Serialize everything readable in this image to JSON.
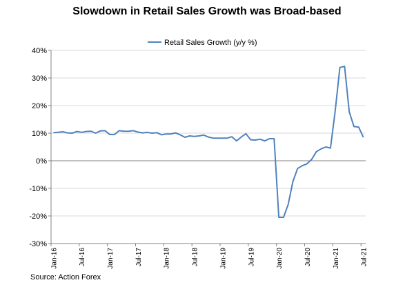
{
  "chart_data": {
    "type": "line",
    "title": "Slowdown in Retail Sales Growth was Broad-based",
    "xlabel": "",
    "ylabel": "",
    "ylim": [
      -30,
      40
    ],
    "yticks": [
      "40%",
      "30%",
      "20%",
      "10%",
      "0%",
      "-10%",
      "-20%",
      "-30%"
    ],
    "ytick_values": [
      40,
      30,
      20,
      10,
      0,
      -10,
      -20,
      -30
    ],
    "xtick_labels": [
      "Jan-16",
      "Jul-16",
      "Jan-17",
      "Jul-17",
      "Jan-18",
      "Jul-18",
      "Jan-19",
      "Jul-19",
      "Jan-20",
      "Jul-20",
      "Jan-21",
      "Jul-21"
    ],
    "x_start": "Jan-16",
    "grid": true,
    "legend_position": "top",
    "color": "#4f81bd",
    "series": [
      {
        "name": "Retail Sales Growth (y/y %)",
        "values": [
          10.2,
          10.3,
          10.5,
          10.1,
          10.0,
          10.6,
          10.3,
          10.6,
          10.7,
          10.0,
          10.8,
          10.9,
          9.5,
          9.5,
          10.9,
          10.7,
          10.7,
          10.9,
          10.4,
          10.1,
          10.3,
          10.0,
          10.2,
          9.4,
          9.7,
          9.7,
          10.1,
          9.4,
          8.5,
          9.0,
          8.8,
          9.0,
          9.3,
          8.6,
          8.2,
          8.2,
          8.2,
          8.2,
          8.7,
          7.2,
          8.6,
          9.8,
          7.6,
          7.5,
          7.8,
          7.2,
          8.0,
          8.0,
          -20.5,
          -20.5,
          -15.8,
          -7.5,
          -2.8,
          -1.8,
          -1.1,
          0.5,
          3.3,
          4.3,
          5.0,
          4.6,
          18.0,
          33.8,
          34.2,
          17.7,
          12.4,
          12.2,
          8.5
        ]
      }
    ]
  },
  "source": "Source: Action Forex"
}
